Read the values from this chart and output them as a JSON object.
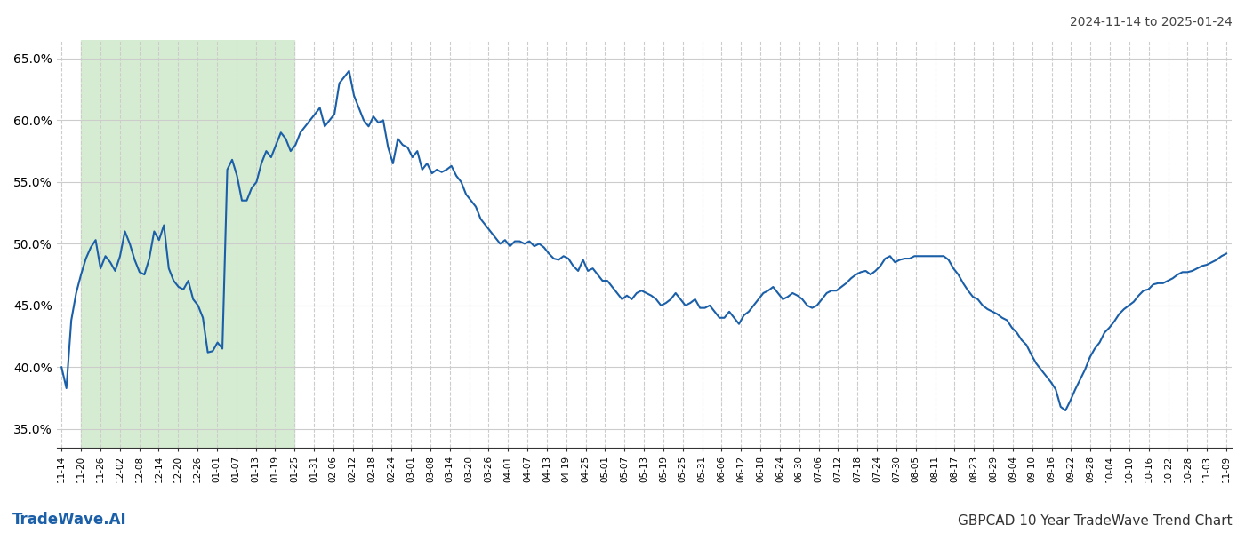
{
  "title_right": "2024-11-14 to 2025-01-24",
  "footer_left": "TradeWave.AI",
  "footer_right": "GBPCAD 10 Year TradeWave Trend Chart",
  "line_color": "#1a5fa8",
  "line_width": 1.5,
  "bg_color": "#ffffff",
  "grid_color": "#cccccc",
  "shade_color": "#d6ecd2",
  "ylim": [
    0.335,
    0.665
  ],
  "yticks": [
    0.35,
    0.4,
    0.45,
    0.5,
    0.55,
    0.6,
    0.65
  ],
  "ytick_labels": [
    "35.0%",
    "40.0%",
    "45.0%",
    "50.0%",
    "55.0%",
    "60.0%",
    "65.0%"
  ],
  "x_labels": [
    "11-14",
    "11-20",
    "11-26",
    "12-02",
    "12-08",
    "12-14",
    "12-20",
    "12-26",
    "01-01",
    "01-07",
    "01-13",
    "01-19",
    "01-25",
    "01-31",
    "02-06",
    "02-12",
    "02-18",
    "02-24",
    "03-01",
    "03-08",
    "03-14",
    "03-20",
    "03-26",
    "04-01",
    "04-07",
    "04-13",
    "04-19",
    "04-25",
    "05-01",
    "05-07",
    "05-13",
    "05-19",
    "05-25",
    "05-31",
    "06-06",
    "06-12",
    "06-18",
    "06-24",
    "06-30",
    "07-06",
    "07-12",
    "07-18",
    "07-24",
    "07-30",
    "08-05",
    "08-11",
    "08-17",
    "08-23",
    "08-29",
    "09-04",
    "09-10",
    "09-16",
    "09-22",
    "09-28",
    "10-04",
    "10-10",
    "10-16",
    "10-22",
    "10-28",
    "11-03",
    "11-09"
  ],
  "shade_label_start": "11-20",
  "shade_label_end": "01-25",
  "values": [
    0.4,
    0.383,
    0.438,
    0.46,
    0.475,
    0.488,
    0.497,
    0.503,
    0.48,
    0.49,
    0.485,
    0.478,
    0.49,
    0.51,
    0.5,
    0.487,
    0.477,
    0.475,
    0.488,
    0.51,
    0.503,
    0.515,
    0.48,
    0.47,
    0.465,
    0.463,
    0.47,
    0.455,
    0.45,
    0.44,
    0.412,
    0.413,
    0.42,
    0.415,
    0.56,
    0.568,
    0.555,
    0.535,
    0.535,
    0.545,
    0.55,
    0.565,
    0.575,
    0.57,
    0.58,
    0.59,
    0.585,
    0.575,
    0.58,
    0.59,
    0.595,
    0.6,
    0.605,
    0.61,
    0.595,
    0.6,
    0.605,
    0.63,
    0.635,
    0.64,
    0.62,
    0.61,
    0.6,
    0.595,
    0.603,
    0.598,
    0.6,
    0.578,
    0.565,
    0.585,
    0.58,
    0.578,
    0.57,
    0.575,
    0.56,
    0.565,
    0.557,
    0.56,
    0.558,
    0.56,
    0.563,
    0.555,
    0.55,
    0.54,
    0.535,
    0.53,
    0.52,
    0.515,
    0.51,
    0.505,
    0.5,
    0.503,
    0.498,
    0.502,
    0.502,
    0.5,
    0.502,
    0.498,
    0.5,
    0.497,
    0.492,
    0.488,
    0.487,
    0.49,
    0.488,
    0.482,
    0.478,
    0.487,
    0.478,
    0.48,
    0.475,
    0.47,
    0.47,
    0.465,
    0.46,
    0.455,
    0.458,
    0.455,
    0.46,
    0.462,
    0.46,
    0.458,
    0.455,
    0.45,
    0.452,
    0.455,
    0.46,
    0.455,
    0.45,
    0.452,
    0.455,
    0.448,
    0.448,
    0.45,
    0.445,
    0.44,
    0.44,
    0.445,
    0.44,
    0.435,
    0.442,
    0.445,
    0.45,
    0.455,
    0.46,
    0.462,
    0.465,
    0.46,
    0.455,
    0.457,
    0.46,
    0.458,
    0.455,
    0.45,
    0.448,
    0.45,
    0.455,
    0.46,
    0.462,
    0.462,
    0.465,
    0.468,
    0.472,
    0.475,
    0.477,
    0.478,
    0.475,
    0.478,
    0.482,
    0.488,
    0.49,
    0.485,
    0.487,
    0.488,
    0.488,
    0.49,
    0.49,
    0.49,
    0.49,
    0.49,
    0.49,
    0.49,
    0.487,
    0.48,
    0.475,
    0.468,
    0.462,
    0.457,
    0.455,
    0.45,
    0.447,
    0.445,
    0.443,
    0.44,
    0.438,
    0.432,
    0.428,
    0.422,
    0.418,
    0.41,
    0.403,
    0.398,
    0.393,
    0.388,
    0.382,
    0.368,
    0.365,
    0.373,
    0.382,
    0.39,
    0.398,
    0.408,
    0.415,
    0.42,
    0.428,
    0.432,
    0.437,
    0.443,
    0.447,
    0.45,
    0.453,
    0.458,
    0.462,
    0.463,
    0.467,
    0.468,
    0.468,
    0.47,
    0.472,
    0.475,
    0.477,
    0.477,
    0.478,
    0.48,
    0.482,
    0.483,
    0.485,
    0.487,
    0.49,
    0.492
  ]
}
